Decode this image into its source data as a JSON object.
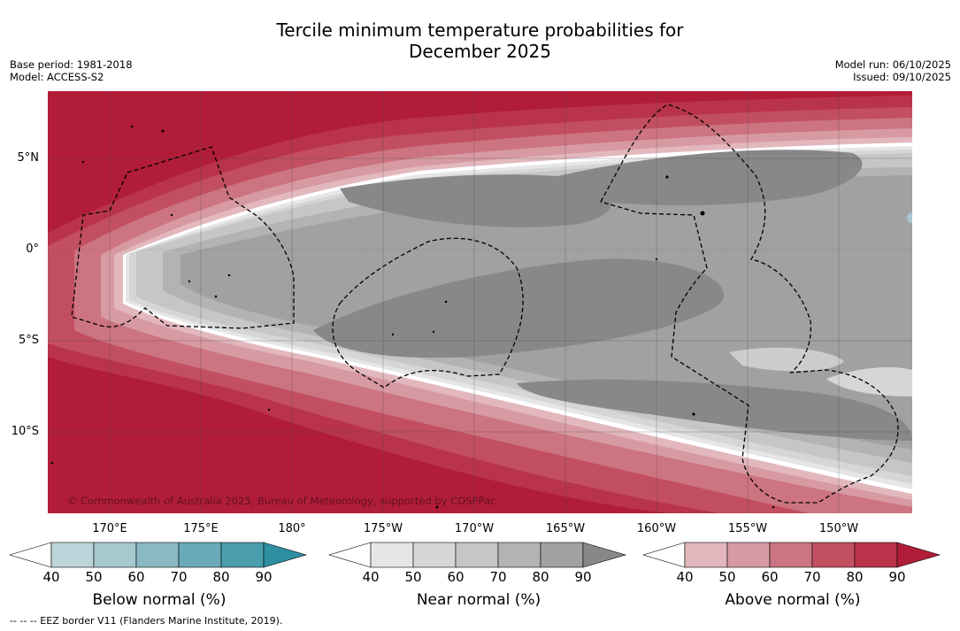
{
  "title_line1": "Tercile minimum temperature probabilities for",
  "title_line2": "December 2025",
  "base_period": "Base period: 1981-2018",
  "model": "Model: ACCESS-S2",
  "model_run": "Model run: 06/10/2025",
  "issued": "Issued: 09/10/2025",
  "copyright": "© Commonwealth of Australia 2025, Bureau of Meteorology, supported by COSPPac",
  "lat_labels": [
    "5°N",
    "0°",
    "5°S",
    "10°S"
  ],
  "lon_labels": [
    "170°E",
    "175°E",
    "180°",
    "175°W",
    "170°W",
    "165°W",
    "160°W",
    "155°W",
    "150°W"
  ],
  "colorbars": [
    {
      "title": "Below normal (%)",
      "ticks": [
        "40",
        "50",
        "60",
        "70",
        "80",
        "90"
      ],
      "colors": [
        "#ffffff",
        "#bcd4da",
        "#a6c8cf",
        "#8ab8c3",
        "#6aaab8",
        "#4a9eae",
        "#2e8fa0"
      ]
    },
    {
      "title": "Near normal (%)",
      "ticks": [
        "40",
        "50",
        "60",
        "70",
        "80",
        "90"
      ],
      "colors": [
        "#ffffff",
        "#e6e6e6",
        "#d6d6d6",
        "#c6c6c6",
        "#b3b3b3",
        "#a1a1a1",
        "#888888"
      ]
    },
    {
      "title": "Above normal (%)",
      "ticks": [
        "40",
        "50",
        "60",
        "70",
        "80",
        "90"
      ],
      "colors": [
        "#ffffff",
        "#e2b8be",
        "#d79aa2",
        "#cc7481",
        "#c24f60",
        "#b9344a",
        "#b11d39"
      ]
    }
  ],
  "footer": "-- -- -- EEZ border V11 (Flanders Marine Institute, 2019)."
}
